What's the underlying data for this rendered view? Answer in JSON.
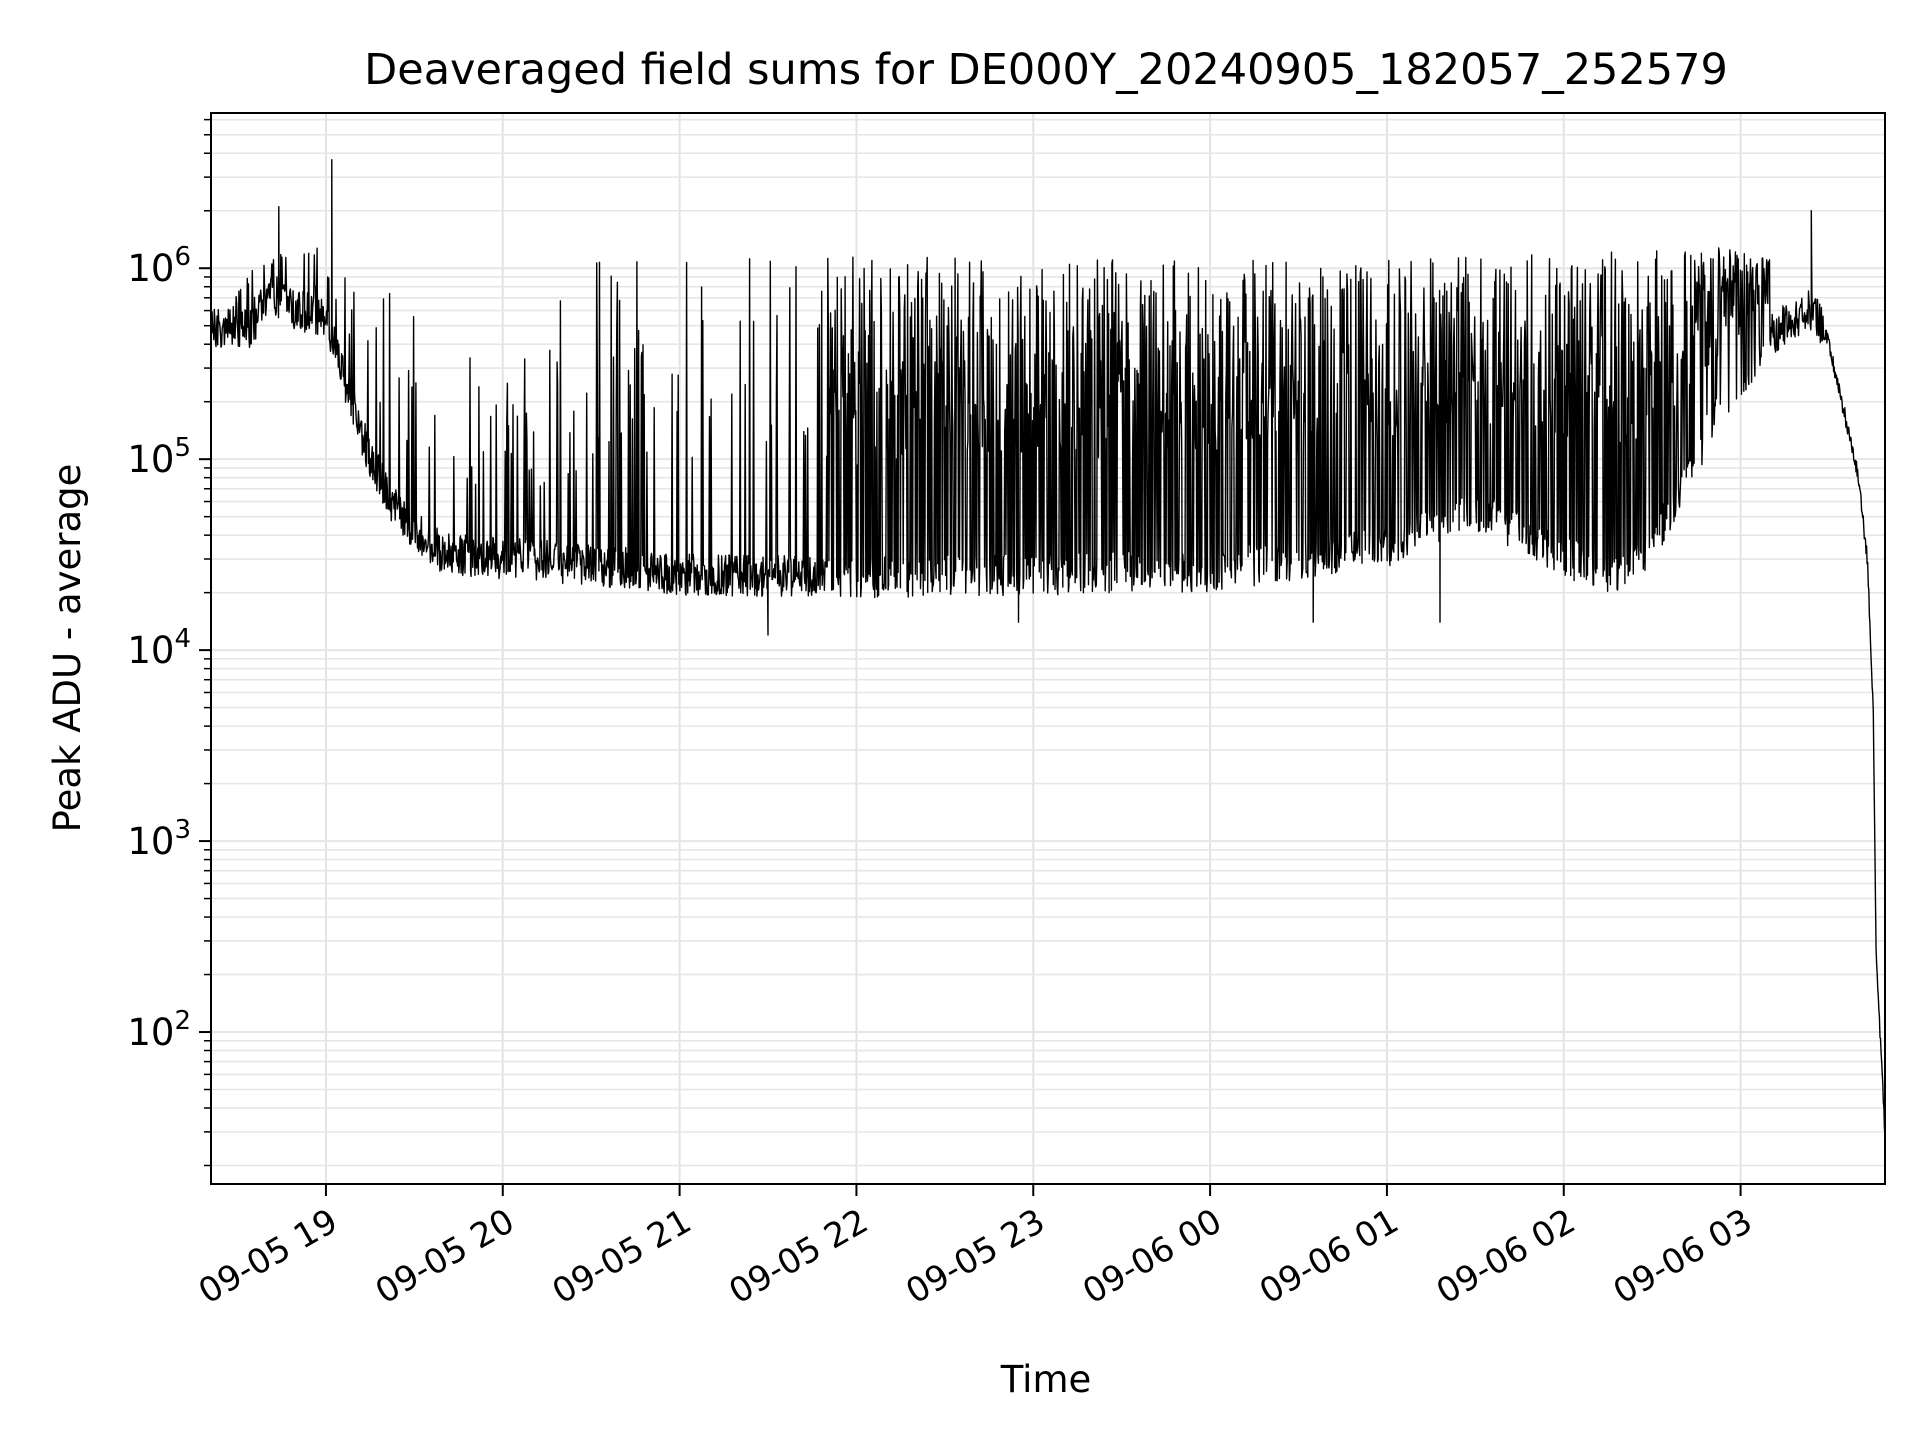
{
  "chart_data": {
    "type": "line",
    "title": "Deaveraged field sums for DE000Y_20240905_182057_252579",
    "xlabel": "Time",
    "ylabel": "Peak ADU - average",
    "yscale": "log",
    "grid": "on",
    "x_range": [
      "2024-09-05 18:21",
      "2024-09-06 03:49"
    ],
    "ylim": [
      16,
      6500000
    ],
    "x_ticks": [
      {
        "t": "2024-09-05 19:00",
        "label": "09-05 19"
      },
      {
        "t": "2024-09-05 20:00",
        "label": "09-05 20"
      },
      {
        "t": "2024-09-05 21:00",
        "label": "09-05 21"
      },
      {
        "t": "2024-09-05 22:00",
        "label": "09-05 22"
      },
      {
        "t": "2024-09-05 23:00",
        "label": "09-05 23"
      },
      {
        "t": "2024-09-06 00:00",
        "label": "09-06 00"
      },
      {
        "t": "2024-09-06 01:00",
        "label": "09-06 01"
      },
      {
        "t": "2024-09-06 02:00",
        "label": "09-06 02"
      },
      {
        "t": "2024-09-06 03:00",
        "label": "09-06 03"
      }
    ],
    "y_ticks": [
      {
        "value": 100,
        "base": "10",
        "exp": "2"
      },
      {
        "value": 1000,
        "base": "10",
        "exp": "3"
      },
      {
        "value": 10000,
        "base": "10",
        "exp": "4"
      },
      {
        "value": 100000,
        "base": "10",
        "exp": "5"
      },
      {
        "value": 1000000,
        "base": "10",
        "exp": "6"
      }
    ],
    "line_color": "#000000",
    "series": [
      {
        "baseline": [
          {
            "t": "2024-09-05 18:21",
            "v": 480000
          },
          {
            "t": "2024-09-05 18:35",
            "v": 480000
          },
          {
            "t": "2024-09-05 18:40",
            "v": 750000
          },
          {
            "t": "2024-09-05 18:50",
            "v": 600000
          },
          {
            "t": "2024-09-05 19:00",
            "v": 550000
          },
          {
            "t": "2024-09-05 19:05",
            "v": 300000
          },
          {
            "t": "2024-09-05 19:15",
            "v": 100000
          },
          {
            "t": "2024-09-05 19:25",
            "v": 50000
          },
          {
            "t": "2024-09-05 19:40",
            "v": 32000
          },
          {
            "t": "2024-09-05 20:30",
            "v": 28000
          },
          {
            "t": "2024-09-05 21:00",
            "v": 25000
          },
          {
            "t": "2024-09-05 22:00",
            "v": 24000
          },
          {
            "t": "2024-09-06 00:00",
            "v": 26000
          },
          {
            "t": "2024-09-06 01:00",
            "v": 35000
          },
          {
            "t": "2024-09-06 01:30",
            "v": 55000
          },
          {
            "t": "2024-09-06 02:15",
            "v": 24000
          },
          {
            "t": "2024-09-06 02:30",
            "v": 35000
          },
          {
            "t": "2024-09-06 02:50",
            "v": 150000
          },
          {
            "t": "2024-09-06 03:10",
            "v": 450000
          },
          {
            "t": "2024-09-06 03:25",
            "v": 620000
          },
          {
            "t": "2024-09-06 03:30",
            "v": 400000
          },
          {
            "t": "2024-09-06 03:35",
            "v": 180000
          },
          {
            "t": "2024-09-06 03:40",
            "v": 80000
          },
          {
            "t": "2024-09-06 03:43",
            "v": 30000
          },
          {
            "t": "2024-09-06 03:45",
            "v": 5000
          },
          {
            "t": "2024-09-06 03:46",
            "v": 250
          },
          {
            "t": "2024-09-06 03:48",
            "v": 60
          },
          {
            "t": "2024-09-06 03:49",
            "v": 28
          }
        ],
        "peak_envelope": [
          {
            "t": "2024-09-05 18:21",
            "v": 550000
          },
          {
            "t": "2024-09-05 18:40",
            "v": 1300000
          },
          {
            "t": "2024-09-05 19:00",
            "v": 1500000
          },
          {
            "t": "2024-09-05 19:30",
            "v": 600000
          },
          {
            "t": "2024-09-05 20:00",
            "v": 250000
          },
          {
            "t": "2024-09-05 20:30",
            "v": 1200000
          },
          {
            "t": "2024-09-05 22:00",
            "v": 1150000
          },
          {
            "t": "2024-09-06 01:00",
            "v": 1100000
          },
          {
            "t": "2024-09-06 03:00",
            "v": 1300000
          },
          {
            "t": "2024-09-06 03:25",
            "v": 900000
          }
        ],
        "notable_peaks": [
          {
            "t": "2024-09-05 18:44",
            "v": 2100000
          },
          {
            "t": "2024-09-05 19:02",
            "v": 3700000
          },
          {
            "t": "2024-09-06 03:24",
            "v": 2000000
          }
        ],
        "notable_dips": [
          {
            "t": "2024-09-05 21:30",
            "v": 12000
          },
          {
            "t": "2024-09-05 22:55",
            "v": 14000
          },
          {
            "t": "2024-09-06 00:35",
            "v": 14000
          },
          {
            "t": "2024-09-06 01:18",
            "v": 14000
          }
        ]
      }
    ]
  }
}
